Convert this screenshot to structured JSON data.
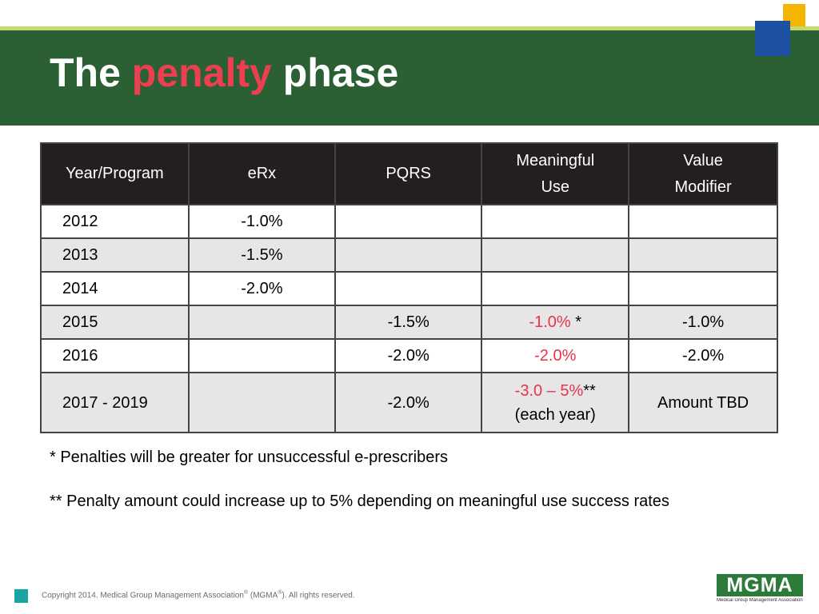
{
  "slide": {
    "title_pre": "The ",
    "title_accent": "penalty",
    "title_post": " phase"
  },
  "table": {
    "headers": [
      "Year/Program",
      "eRx",
      "PQRS",
      "Meaningful Use",
      "Value Modifier"
    ],
    "rows": [
      {
        "year": "2012",
        "erx": "-1.0%",
        "pqrs": "",
        "mu": "",
        "mu_suffix": "",
        "mu_line2": "",
        "vm": ""
      },
      {
        "year": "2013",
        "erx": "-1.5%",
        "pqrs": "",
        "mu": "",
        "mu_suffix": "",
        "mu_line2": "",
        "vm": ""
      },
      {
        "year": "2014",
        "erx": "-2.0%",
        "pqrs": "",
        "mu": "",
        "mu_suffix": "",
        "mu_line2": "",
        "vm": ""
      },
      {
        "year": "2015",
        "erx": "",
        "pqrs": "-1.5%",
        "mu": "-1.0%",
        "mu_suffix": " *",
        "mu_line2": "",
        "vm": "-1.0%"
      },
      {
        "year": "2016",
        "erx": "",
        "pqrs": "-2.0%",
        "mu": "-2.0%",
        "mu_suffix": "",
        "mu_line2": "",
        "vm": "-2.0%"
      },
      {
        "year": "2017 -  2019",
        "erx": "",
        "pqrs": "-2.0%",
        "mu": "-3.0 – 5%",
        "mu_suffix": "**",
        "mu_line2": "(each year)",
        "vm": "Amount TBD"
      }
    ]
  },
  "notes": {
    "note1": "*  Penalties will be greater for unsuccessful e-prescribers",
    "note2": "** Penalty amount could increase up to 5% depending on meaningful use success rates"
  },
  "footer": {
    "copyright_pre": "Copyright 2014. Medical Group Management Association",
    "reg": "®",
    "copyright_mid": " (MGMA",
    "copyright_post": "). All rights reserved.",
    "logo_text": "MGMA",
    "logo_subtext": "Medical Group Management Association"
  },
  "colors": {
    "header_band": "#2b6034",
    "accent_red": "#ee3e52",
    "top_line": "#c6d96b",
    "square_yellow": "#f4b400",
    "square_blue": "#1e50a2",
    "table_header_bg": "#231f20",
    "footer_square": "#1aa3a3"
  }
}
